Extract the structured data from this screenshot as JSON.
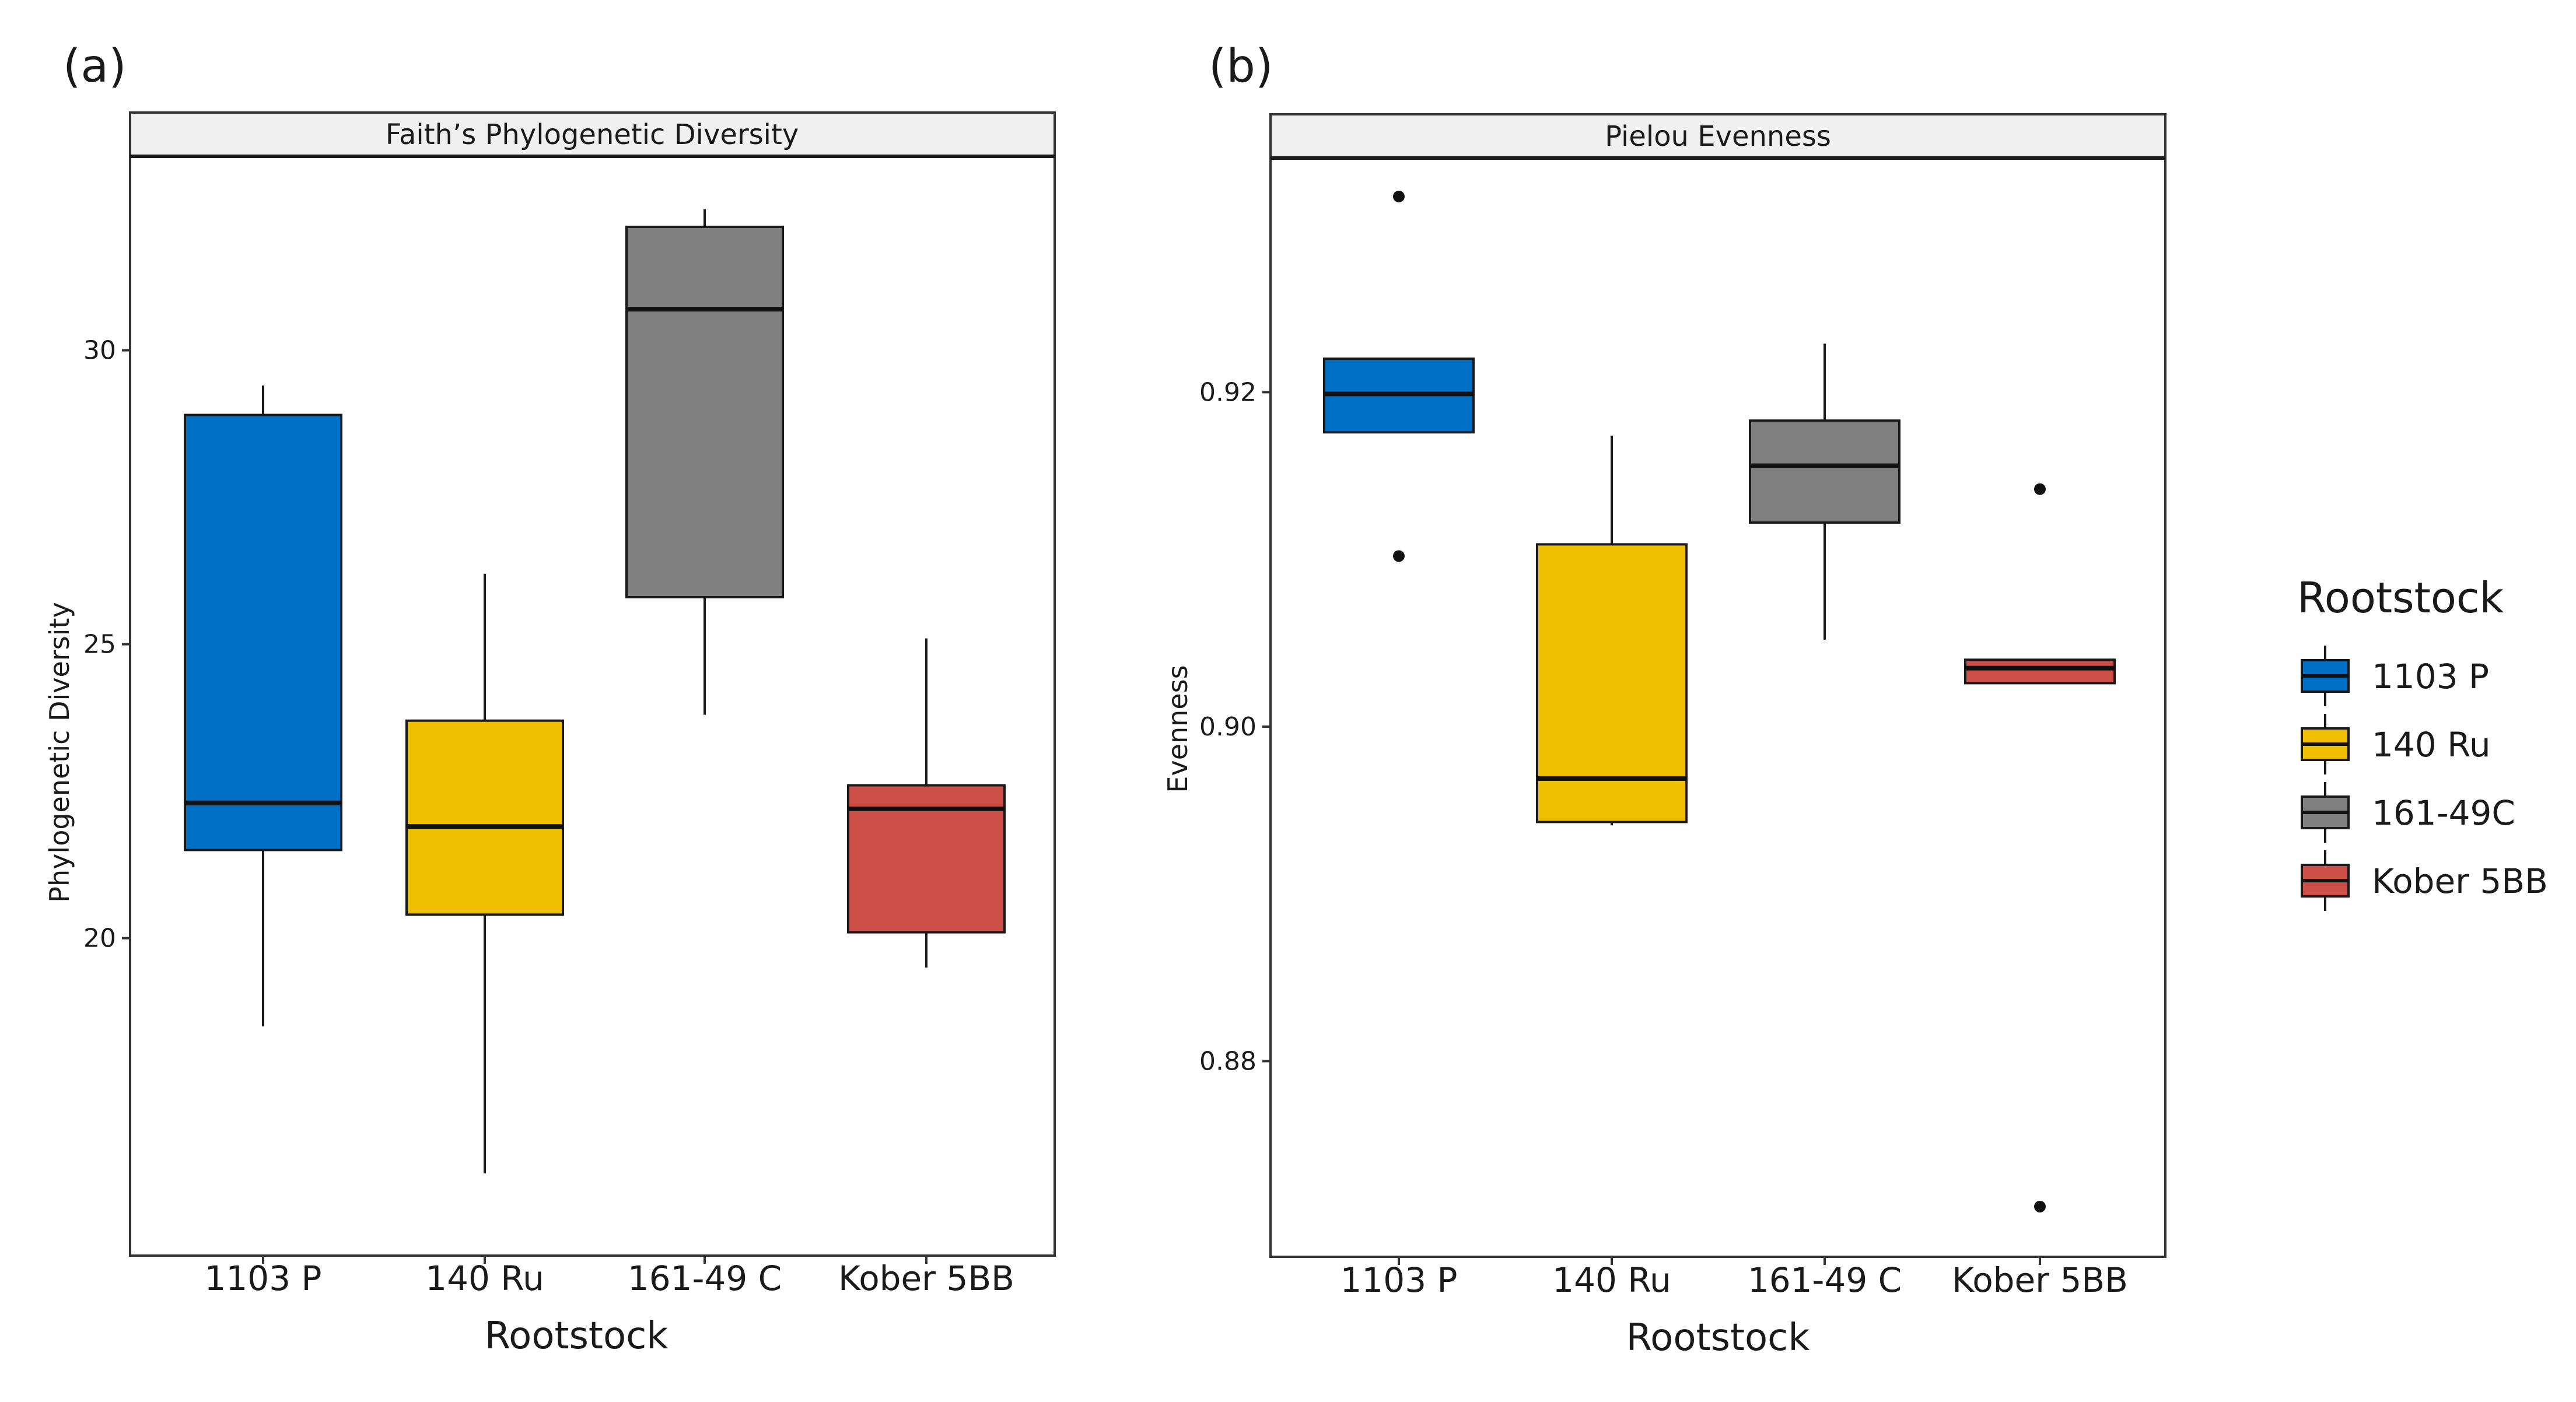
{
  "legend": {
    "title": "Rootstock",
    "entries": [
      {
        "label": "1103 P",
        "color": "#0070c6"
      },
      {
        "label": "140 Ru",
        "color": "#f0c000"
      },
      {
        "label": "161-49C",
        "color": "#808080"
      },
      {
        "label": "Kober 5BB",
        "color": "#cd5048"
      }
    ]
  },
  "chart_data": [
    {
      "panel_label": "(a)",
      "type": "box",
      "title": "Faith’s Phylogenetic Diversity",
      "xlabel": "Rootstock",
      "ylabel": "Phylogenetic Diversity",
      "ylim": [
        14.6,
        33.3
      ],
      "yticks": [
        20,
        25,
        30
      ],
      "ytick_labels": [
        "20",
        "25",
        "30"
      ],
      "categories": [
        "1103 P",
        "140 Ru",
        "161-49 C",
        "Kober 5BB"
      ],
      "colors": [
        "#0070c6",
        "#f0c000",
        "#808080",
        "#cd5048"
      ],
      "boxes": [
        {
          "whisker_low": 18.5,
          "q1": 21.5,
          "median": 22.3,
          "q3": 28.9,
          "whisker_high": 29.4,
          "outliers": []
        },
        {
          "whisker_low": 16.0,
          "q1": 20.4,
          "median": 21.9,
          "q3": 23.7,
          "whisker_high": 26.2,
          "outliers": []
        },
        {
          "whisker_low": 23.8,
          "q1": 25.8,
          "median": 30.7,
          "q3": 32.1,
          "whisker_high": 32.4,
          "outliers": []
        },
        {
          "whisker_low": 19.5,
          "q1": 20.1,
          "median": 22.2,
          "q3": 22.6,
          "whisker_high": 25.1,
          "outliers": []
        }
      ]
    },
    {
      "panel_label": "(b)",
      "type": "box",
      "title": "Pielou Evenness",
      "xlabel": "Rootstock",
      "ylabel": "Evenness",
      "ylim": [
        0.8683,
        0.934
      ],
      "yticks": [
        0.88,
        0.9,
        0.92
      ],
      "ytick_labels": [
        "0.88",
        "0.90",
        "0.92"
      ],
      "categories": [
        "1103 P",
        "140 Ru",
        "161-49 C",
        "Kober 5BB"
      ],
      "colors": [
        "#0070c6",
        "#f0c000",
        "#808080",
        "#cd5048"
      ],
      "boxes": [
        {
          "whisker_low": 0.9176,
          "q1": 0.9176,
          "median": 0.9199,
          "q3": 0.922,
          "whisker_high": 0.922,
          "outliers": [
            0.9317,
            0.9102
          ]
        },
        {
          "whisker_low": 0.8941,
          "q1": 0.8943,
          "median": 0.8969,
          "q3": 0.9109,
          "whisker_high": 0.9174,
          "outliers": []
        },
        {
          "whisker_low": 0.9052,
          "q1": 0.9122,
          "median": 0.9156,
          "q3": 0.9183,
          "whisker_high": 0.9229,
          "outliers": []
        },
        {
          "whisker_low": 0.9026,
          "q1": 0.9026,
          "median": 0.9035,
          "q3": 0.904,
          "whisker_high": 0.904,
          "outliers": [
            0.9142,
            0.8713
          ]
        }
      ]
    }
  ]
}
